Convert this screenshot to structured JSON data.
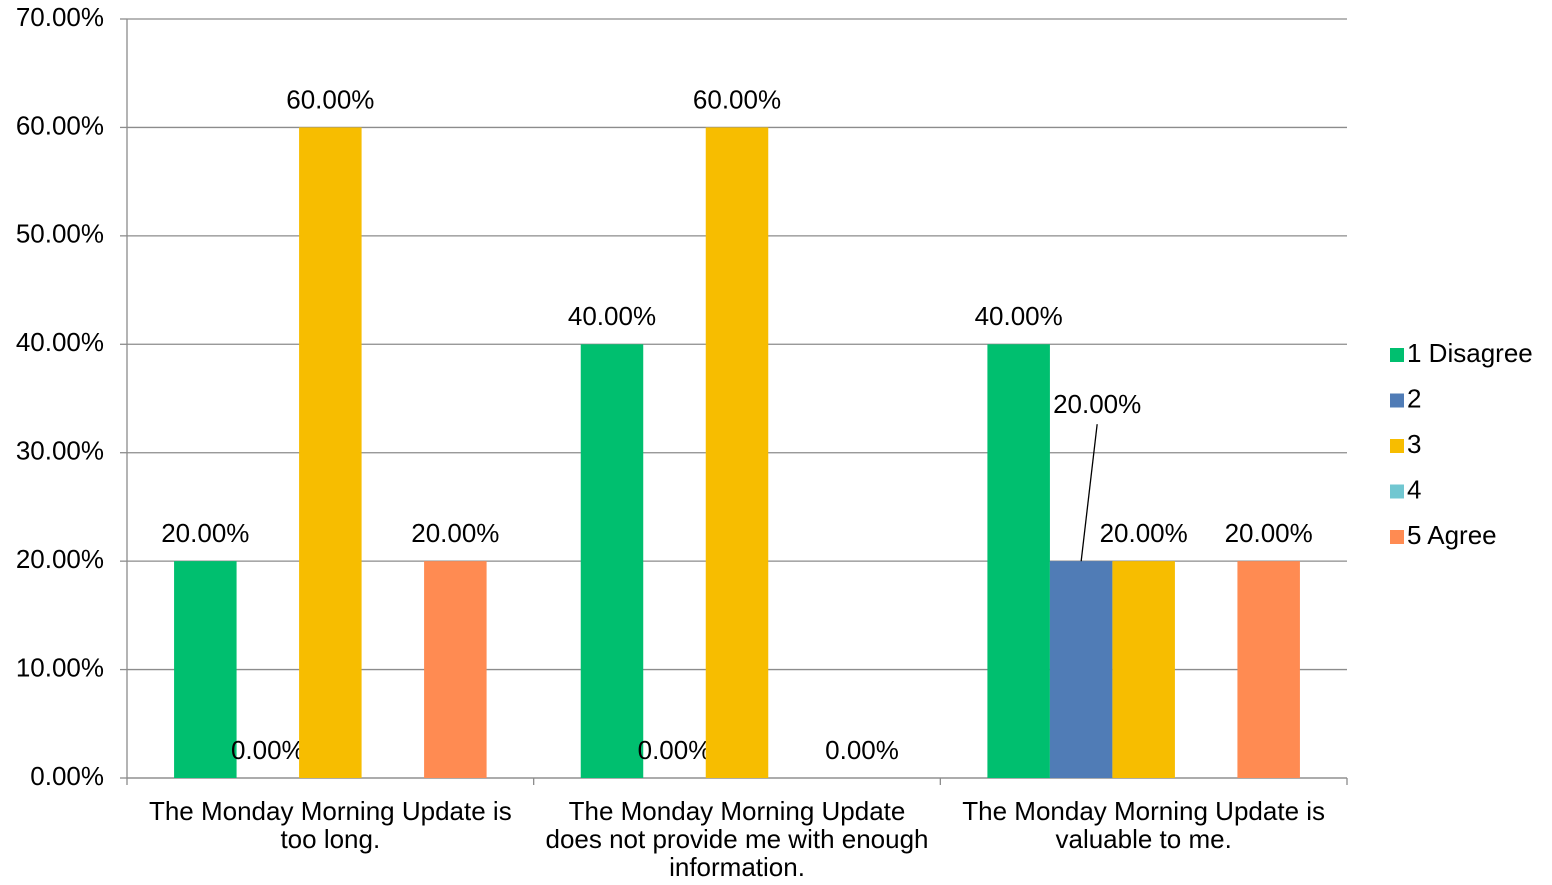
{
  "chart_data": {
    "type": "bar",
    "categories": [
      "The Monday Morning Update is too long.",
      "The Monday Morning Update does not provide me with enough information.",
      "The Monday Morning Update is valuable to me."
    ],
    "series": [
      {
        "name": "1 Disagree",
        "color": "#00bf6f",
        "values": [
          20,
          40,
          40
        ],
        "value_labels": [
          "20.00%",
          "40.00%",
          "40.00%"
        ]
      },
      {
        "name": "2",
        "color": "#507cb6",
        "values": [
          0,
          0,
          20
        ],
        "value_labels": [
          "0.00%",
          "0.00%",
          "20.00%"
        ]
      },
      {
        "name": "3",
        "color": "#f7bd00",
        "values": [
          60,
          60,
          20
        ],
        "value_labels": [
          "60.00%",
          "60.00%",
          "20.00%"
        ]
      },
      {
        "name": "4",
        "color": "#71c7d1",
        "values": [
          null,
          null,
          null
        ]
      },
      {
        "name": "5 Agree",
        "color": "#ff8b52",
        "values": [
          20,
          0,
          20
        ],
        "value_labels": [
          "20.00%",
          "0.00%",
          "20.00%"
        ]
      }
    ],
    "ylim": [
      0,
      70
    ],
    "yticks": [
      {
        "value": 0,
        "label": "0.00%"
      },
      {
        "value": 10,
        "label": "10.00%"
      },
      {
        "value": 20,
        "label": "20.00%"
      },
      {
        "value": 30,
        "label": "30.00%"
      },
      {
        "value": 40,
        "label": "40.00%"
      },
      {
        "value": 50,
        "label": "50.00%"
      },
      {
        "value": 60,
        "label": "60.00%"
      },
      {
        "value": 70,
        "label": "70.00%"
      }
    ],
    "grid": true,
    "legend": "right"
  }
}
